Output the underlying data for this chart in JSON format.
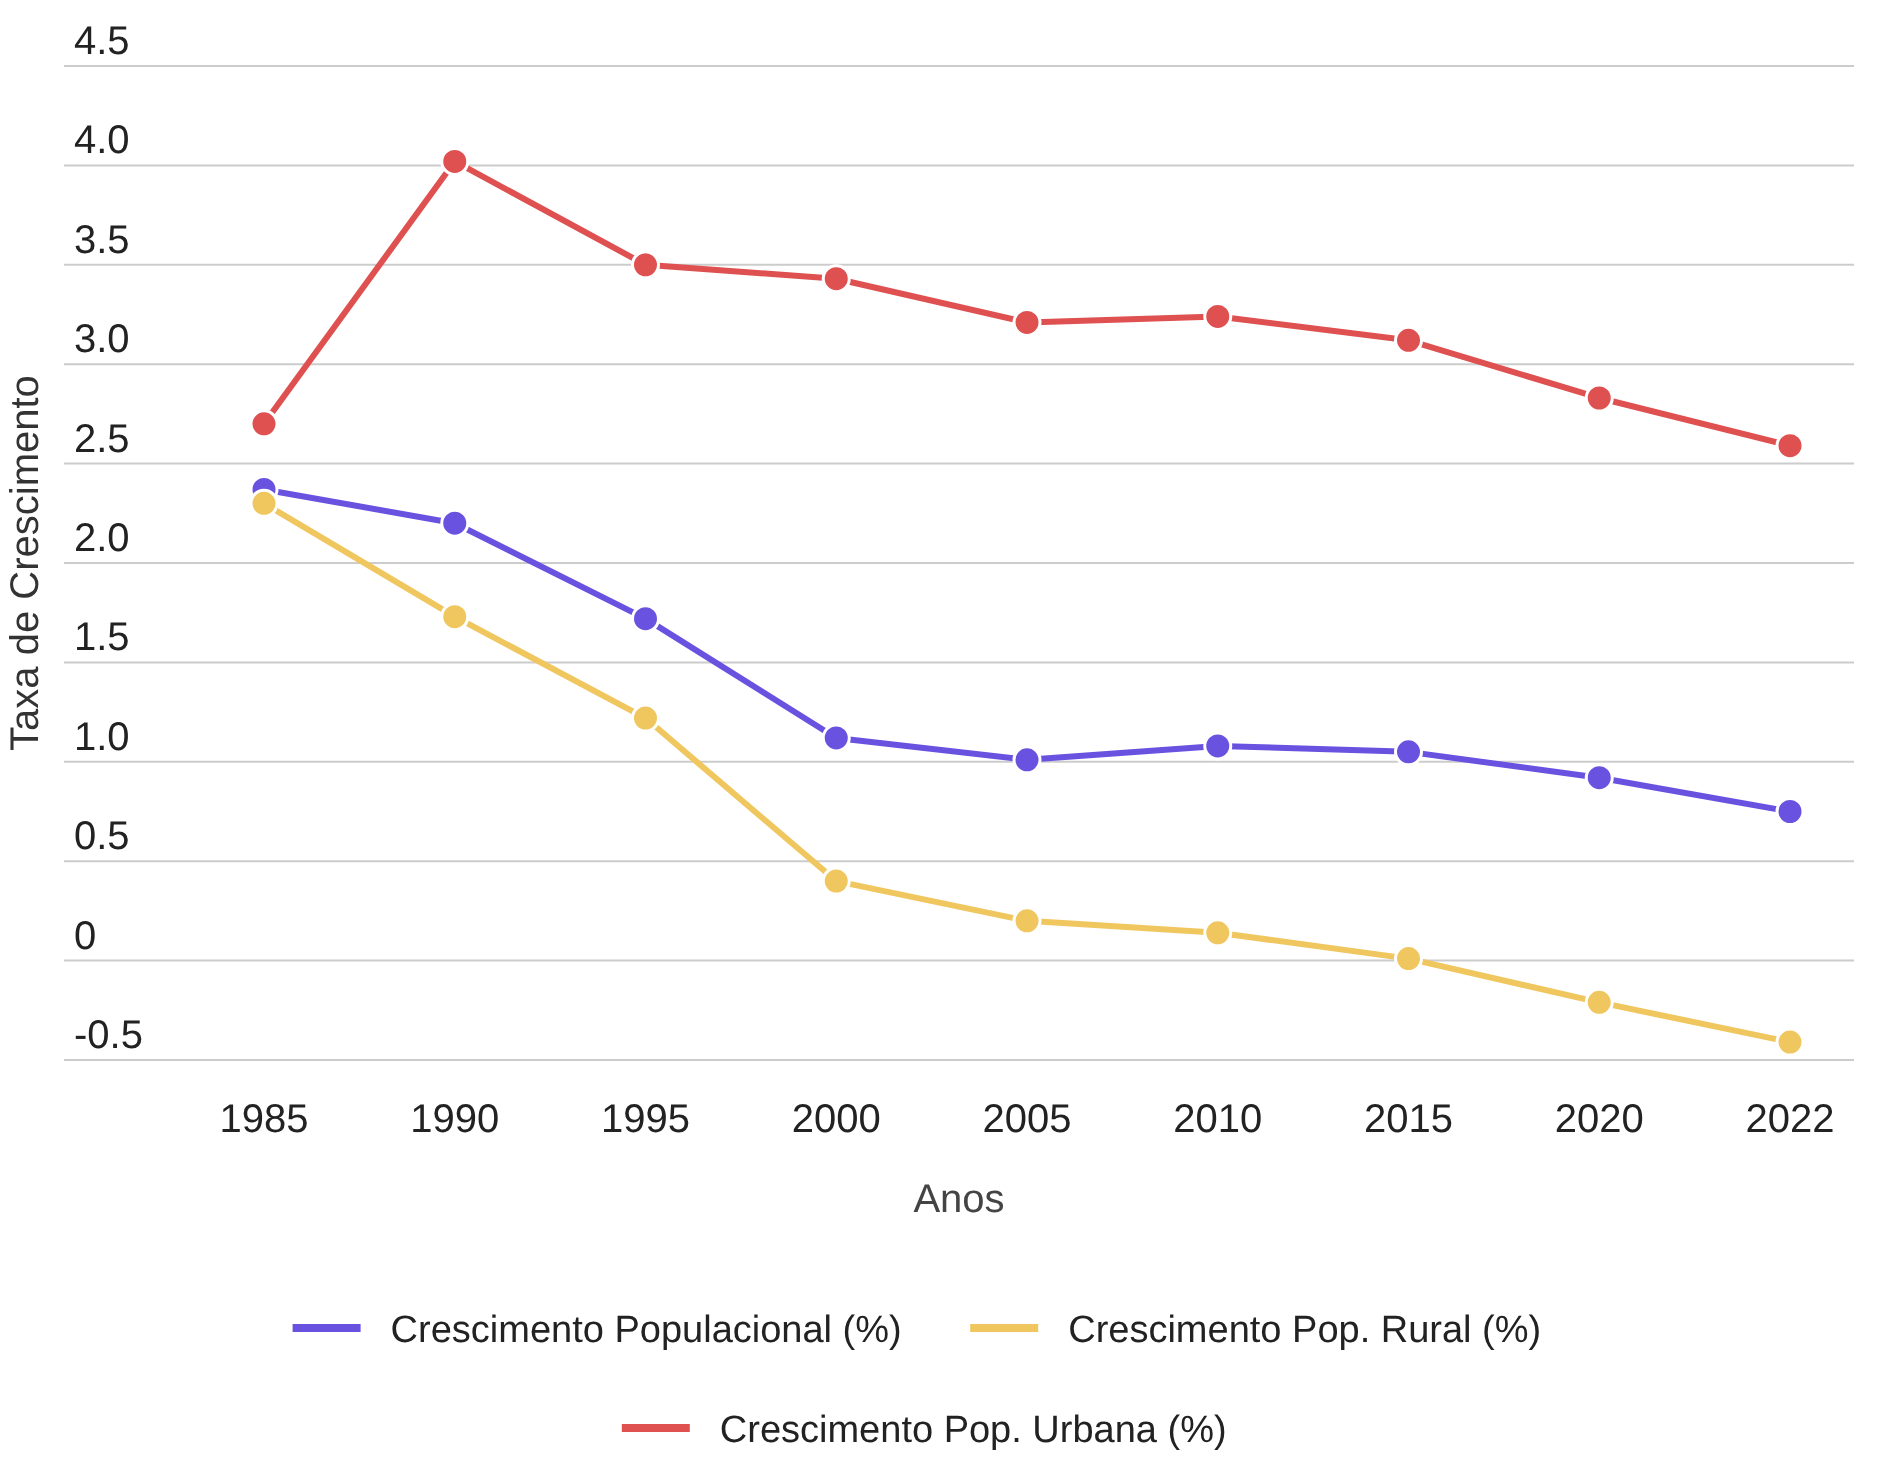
{
  "chart_data": {
    "type": "line",
    "xlabel": "Anos",
    "ylabel": "Taxa de Crescimento",
    "categories": [
      "1985",
      "1990",
      "1995",
      "2000",
      "2005",
      "2010",
      "2015",
      "2020",
      "2022"
    ],
    "series": [
      {
        "name": "Crescimento Populacional (%)",
        "color": "#6a52e0",
        "values": [
          2.37,
          2.2,
          1.72,
          1.12,
          1.01,
          1.08,
          1.05,
          0.92,
          0.75
        ]
      },
      {
        "name": "Crescimento Pop. Rural (%)",
        "color": "#f0c75e",
        "values": [
          2.3,
          1.73,
          1.22,
          0.4,
          0.2,
          0.14,
          0.01,
          -0.21,
          -0.41
        ]
      },
      {
        "name": "Crescimento Pop. Urbana (%)",
        "color": "#df5050",
        "values": [
          2.7,
          4.02,
          3.5,
          3.43,
          3.21,
          3.24,
          3.12,
          2.83,
          2.59
        ]
      }
    ],
    "ylim": [
      -0.5,
      4.5
    ],
    "yticks": [
      {
        "value": -0.5,
        "label": "-0.5"
      },
      {
        "value": 0,
        "label": "0"
      },
      {
        "value": 0.5,
        "label": "0.5"
      },
      {
        "value": 1,
        "label": "1.0"
      },
      {
        "value": 1.5,
        "label": "1.5"
      },
      {
        "value": 2,
        "label": "2.0"
      },
      {
        "value": 2.5,
        "label": "2.5"
      },
      {
        "value": 3,
        "label": "3.0"
      },
      {
        "value": 3.5,
        "label": "3.5"
      },
      {
        "value": 4,
        "label": "4.0"
      },
      {
        "value": 4.5,
        "label": "4.5"
      }
    ],
    "grid": "y",
    "legend": "bottom",
    "marker": "circle",
    "line_style": "solid"
  }
}
